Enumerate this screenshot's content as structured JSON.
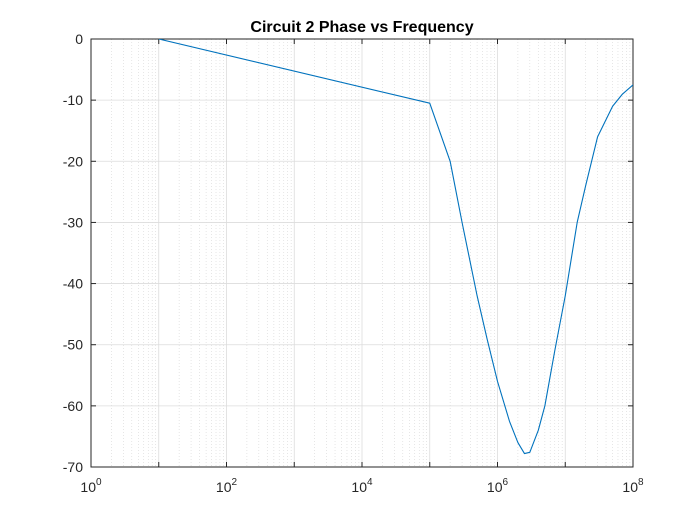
{
  "chart_data": {
    "type": "line",
    "title": "Circuit 2 Phase vs Frequency",
    "xlabel": "",
    "ylabel": "",
    "xscale": "log",
    "xlim": [
      1,
      100000000
    ],
    "ylim": [
      -70,
      0
    ],
    "grid": true,
    "minor_grid_x": true,
    "legend": "none",
    "x_ticks": [
      {
        "base": "10",
        "exp": "0",
        "value": 1
      },
      {
        "base": "10",
        "exp": "2",
        "value": 100
      },
      {
        "base": "10",
        "exp": "4",
        "value": 10000
      },
      {
        "base": "10",
        "exp": "6",
        "value": 1000000
      },
      {
        "base": "10",
        "exp": "8",
        "value": 100000000
      }
    ],
    "y_ticks": [
      {
        "label": "0",
        "value": 0
      },
      {
        "label": "-10",
        "value": -10
      },
      {
        "label": "-20",
        "value": -20
      },
      {
        "label": "-30",
        "value": -30
      },
      {
        "label": "-40",
        "value": -40
      },
      {
        "label": "-50",
        "value": -50
      },
      {
        "label": "-60",
        "value": -60
      },
      {
        "label": "-70",
        "value": -70
      }
    ],
    "series": [
      {
        "color": "#0072bd",
        "x": [
          10,
          100000,
          200000,
          300000,
          500000,
          700000,
          1000000,
          1500000,
          2000000,
          2500000,
          3000000,
          4000000,
          5000000,
          7000000,
          10000000,
          15000000,
          20000000,
          30000000,
          50000000,
          70000000,
          100000000
        ],
        "y": [
          0,
          -10.5,
          -20,
          -30,
          -42,
          -49,
          -56,
          -62.5,
          -66,
          -67.8,
          -67.6,
          -64,
          -60,
          -51,
          -42,
          -30,
          -24,
          -16,
          -11,
          -9,
          -7.5
        ]
      }
    ]
  }
}
